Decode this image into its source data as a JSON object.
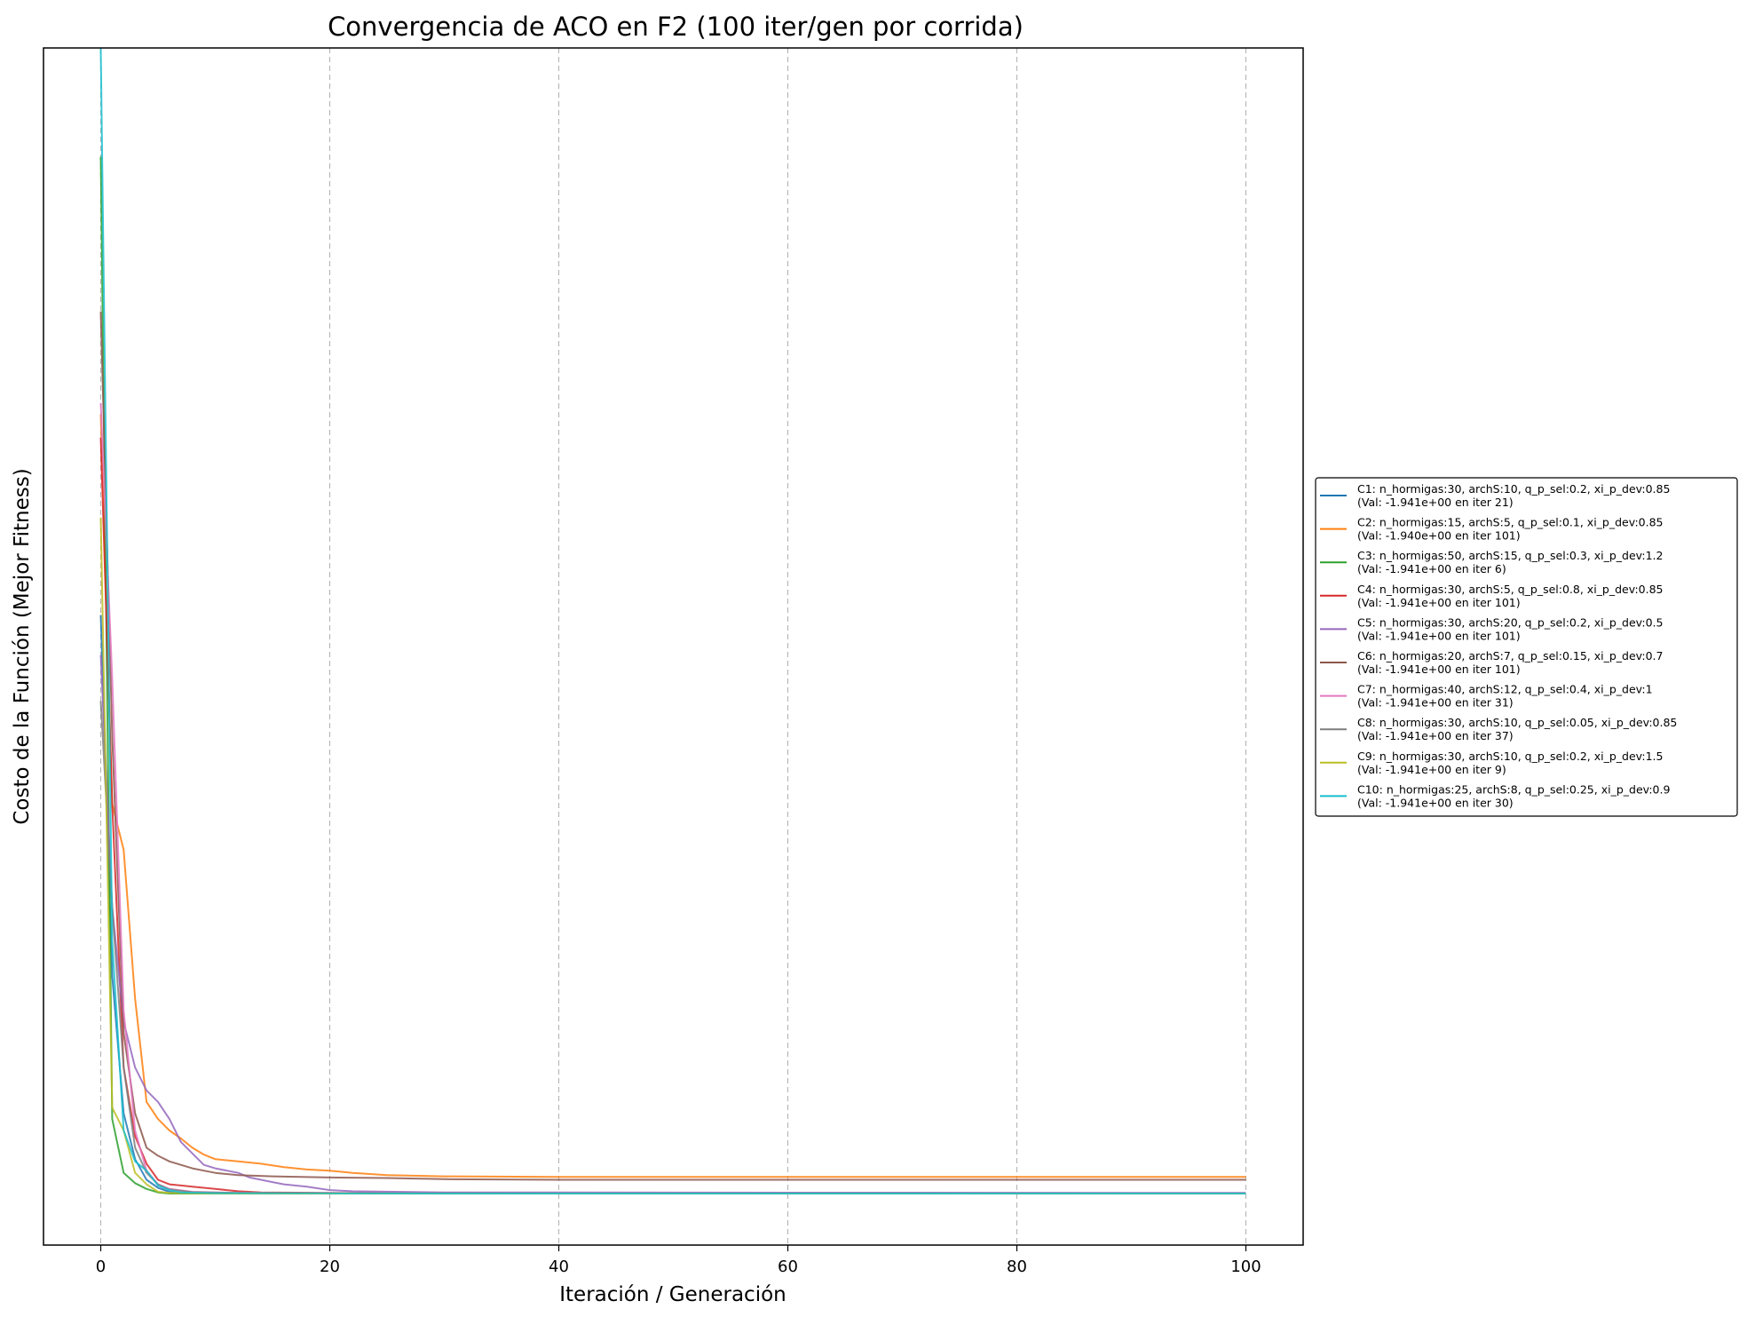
{
  "chart_data": {
    "type": "line",
    "title": "Convergencia de ACO en F2 (100 iter/gen por corrida)",
    "xlabel": "Iteración / Generación",
    "ylabel": "Costo de la Función (Mejor Fitness)",
    "xlim": [
      -5,
      105
    ],
    "ylim": [
      -4.5,
      100
    ],
    "xticks": [
      0,
      20,
      40,
      60,
      80,
      100
    ],
    "y_tick_labels_shown": false,
    "grid": "vertical dashed",
    "legend_position": "outside right",
    "series": [
      {
        "name": "C1: n_hormigas:30, archS:10, q_p_sel:0.2, xi_p_dev:0.85",
        "note": "(Val: -1.941e+00 en iter 21)",
        "color": "#1f77b4",
        "x": [
          0,
          1,
          2,
          3,
          4,
          5,
          6,
          7,
          10,
          21,
          100
        ],
        "y": [
          50.5,
          19,
          7,
          3,
          1.2,
          0.5,
          0.15,
          0.05,
          0.02,
          0,
          0
        ]
      },
      {
        "name": "C2: n_hormigas:15, archS:5, q_p_sel:0.1, xi_p_dev:0.85",
        "note": "(Val: -1.940e+00 en iter 101)",
        "color": "#ff7f0e",
        "x": [
          0,
          1,
          2,
          3,
          4,
          5,
          6,
          7,
          8,
          9,
          10,
          12,
          14,
          16,
          18,
          20,
          22,
          25,
          30,
          40,
          60,
          100
        ],
        "y": [
          68,
          34,
          30,
          17,
          8,
          6.5,
          5.5,
          4.8,
          4,
          3.4,
          3,
          2.8,
          2.6,
          2.3,
          2.1,
          2,
          1.8,
          1.6,
          1.5,
          1.45,
          1.45,
          1.45
        ]
      },
      {
        "name": "C3: n_hormigas:50, archS:15, q_p_sel:0.3, xi_p_dev:1.2",
        "note": "(Val: -1.941e+00 en iter 6)",
        "color": "#2ca02c",
        "x": [
          0,
          1,
          2,
          3,
          4,
          5,
          6,
          100
        ],
        "y": [
          90.5,
          6.5,
          1.8,
          0.9,
          0.4,
          0.1,
          0,
          0
        ]
      },
      {
        "name": "C4: n_hormigas:30, archS:5, q_p_sel:0.8, xi_p_dev:0.85",
        "note": "(Val: -1.941e+00 en iter 101)",
        "color": "#d62728",
        "x": [
          0,
          1,
          2,
          3,
          4,
          5,
          6,
          7,
          8,
          10,
          12,
          14,
          20,
          40,
          100
        ],
        "y": [
          66,
          34,
          11,
          5,
          2.6,
          1.2,
          0.8,
          0.7,
          0.6,
          0.4,
          0.2,
          0.1,
          0.05,
          0.02,
          0.02
        ]
      },
      {
        "name": "C5: n_hormigas:30, archS:20, q_p_sel:0.2, xi_p_dev:0.5",
        "note": "(Val: -1.941e+00 en iter 101)",
        "color": "#9467bd",
        "x": [
          0,
          1,
          2,
          3,
          4,
          5,
          6,
          7,
          8,
          9,
          10,
          12,
          13,
          14,
          15,
          16,
          18,
          20,
          22,
          30,
          100
        ],
        "y": [
          47,
          25,
          15,
          11,
          9,
          8,
          6.5,
          4.5,
          3.5,
          2.5,
          2.2,
          1.8,
          1.4,
          1.2,
          1.0,
          0.8,
          0.6,
          0.3,
          0.2,
          0.1,
          0.05
        ]
      },
      {
        "name": "C6: n_hormigas:20, archS:7, q_p_sel:0.15, xi_p_dev:0.7",
        "note": "(Val: -1.941e+00 en iter 101)",
        "color": "#8c564b",
        "x": [
          0,
          1,
          2,
          3,
          4,
          5,
          6,
          7,
          8,
          9,
          10,
          11,
          12,
          15,
          20,
          25,
          30,
          40,
          60,
          100
        ],
        "y": [
          77,
          40,
          14,
          7,
          4,
          3.3,
          2.8,
          2.5,
          2.2,
          2.0,
          1.8,
          1.7,
          1.6,
          1.5,
          1.4,
          1.35,
          1.25,
          1.2,
          1.2,
          1.2
        ]
      },
      {
        "name": "C7: n_hormigas:40, archS:12, q_p_sel:0.4, xi_p_dev:1",
        "note": "(Val: -1.941e+00 en iter 31)",
        "color": "#e377c2",
        "x": [
          0,
          1,
          2,
          3,
          4,
          5,
          6,
          8,
          12,
          20,
          31,
          100
        ],
        "y": [
          69,
          45,
          16,
          5.5,
          2.0,
          0.8,
          0.4,
          0.15,
          0.05,
          0.02,
          0,
          0
        ]
      },
      {
        "name": "C8: n_hormigas:30, archS:10, q_p_sel:0.05, xi_p_dev:0.85",
        "note": "(Val: -1.941e+00 en iter 37)",
        "color": "#7f7f7f",
        "x": [
          0,
          1,
          2,
          3,
          4,
          5,
          6,
          8,
          12,
          20,
          37,
          100
        ],
        "y": [
          43,
          25,
          11,
          4,
          1.8,
          0.8,
          0.35,
          0.12,
          0.05,
          0.02,
          0,
          0
        ]
      },
      {
        "name": "C9: n_hormigas:30, archS:10, q_p_sel:0.2, xi_p_dev:1.5",
        "note": "(Val: -1.941e+00 en iter 9)",
        "color": "#bcbd22",
        "x": [
          0,
          1,
          2,
          3,
          4,
          5,
          6,
          9,
          100
        ],
        "y": [
          59,
          7.5,
          5.5,
          1.8,
          0.8,
          0.15,
          0.05,
          0,
          0
        ]
      },
      {
        "name": "C10: n_hormigas:25, archS:8, q_p_sel:0.25, xi_p_dev:0.9",
        "note": "(Val: -1.941e+00 en iter 30)",
        "color": "#17becf",
        "x": [
          0,
          1,
          2,
          3,
          4,
          5,
          6,
          7,
          10,
          20,
          30,
          100
        ],
        "y": [
          100,
          22,
          5.5,
          2.8,
          2.0,
          0.7,
          0.3,
          0.1,
          0.03,
          0.01,
          0,
          0
        ]
      }
    ]
  }
}
